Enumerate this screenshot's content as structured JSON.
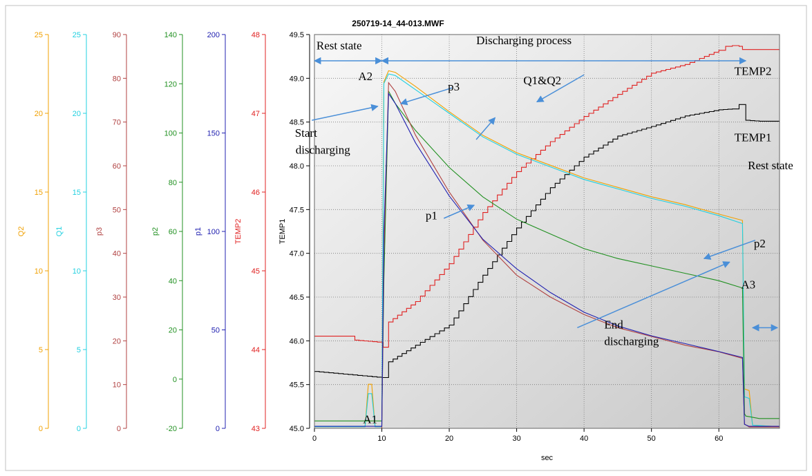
{
  "chart_data": {
    "type": "line",
    "title": "250719-14_44-013.MWF",
    "xlabel": "sec",
    "xlim": [
      0,
      69
    ],
    "x_ticks": [
      0,
      10,
      20,
      30,
      40,
      50,
      60
    ],
    "grid": true,
    "axes": [
      {
        "name": "Q2",
        "color": "#f0a000",
        "min": 0,
        "max": 25,
        "ticks": [
          0,
          5,
          10,
          15,
          20,
          25
        ]
      },
      {
        "name": "Q1",
        "color": "#20d0e0",
        "min": 0,
        "max": 25,
        "ticks": [
          0,
          5,
          10,
          15,
          20,
          25
        ]
      },
      {
        "name": "p3",
        "color": "#b04040",
        "min": 0,
        "max": 90,
        "ticks": [
          0,
          10,
          20,
          30,
          40,
          50,
          60,
          70,
          80,
          90
        ]
      },
      {
        "name": "p2",
        "color": "#209020",
        "min": -20,
        "max": 140,
        "ticks": [
          -20,
          0,
          20,
          40,
          60,
          80,
          100,
          120,
          140
        ]
      },
      {
        "name": "p1",
        "color": "#2020b0",
        "min": 0,
        "max": 200,
        "ticks": [
          0,
          50,
          100,
          150,
          200
        ]
      },
      {
        "name": "TEMP2",
        "color": "#e02020",
        "min": 43,
        "max": 48,
        "ticks": [
          43,
          44,
          45,
          46,
          47,
          48
        ]
      },
      {
        "name": "TEMP1",
        "color": "#000000",
        "min": 45,
        "max": 49.5,
        "ticks": [
          "45.0",
          "45.5",
          "46.0",
          "46.5",
          "47.0",
          "47.5",
          "48.0",
          "48.5",
          "49.0",
          "49.5"
        ]
      }
    ],
    "series": [
      {
        "name": "TEMP2",
        "color": "#e02020",
        "axis": "TEMP2",
        "step": true,
        "x": [
          0,
          5,
          6,
          10,
          10.2,
          11,
          15,
          20,
          25,
          30,
          35,
          40,
          45,
          50,
          55,
          60,
          61,
          62,
          63,
          63.5,
          64,
          66,
          69
        ],
        "y": [
          44.17,
          44.17,
          44.12,
          44.09,
          44.03,
          44.35,
          44.61,
          45.09,
          45.74,
          46.26,
          46.64,
          46.96,
          47.24,
          47.51,
          47.62,
          47.8,
          47.85,
          47.86,
          47.85,
          47.81,
          47.81,
          47.81,
          47.81
        ]
      },
      {
        "name": "TEMP1",
        "color": "#000000",
        "axis": "TEMP1",
        "step": true,
        "x": [
          0,
          10,
          11,
          15,
          20,
          25,
          30,
          35,
          40,
          45,
          50,
          55,
          60,
          62,
          63,
          64,
          66,
          69
        ],
        "y": [
          45.65,
          45.58,
          45.76,
          45.95,
          46.18,
          46.75,
          47.29,
          47.75,
          48.1,
          48.34,
          48.45,
          48.57,
          48.64,
          48.65,
          48.7,
          48.52,
          48.51,
          48.51
        ]
      },
      {
        "name": "Q2",
        "color": "#f0a000",
        "axis": "Q2",
        "x": [
          0,
          7.5,
          8,
          8.5,
          9,
          10,
          10.3,
          11,
          12,
          15,
          20,
          25,
          30,
          35,
          40,
          45,
          50,
          55,
          60,
          63.5,
          63.8,
          64.5,
          65,
          69
        ],
        "y": [
          0.1,
          0.1,
          2.8,
          2.8,
          0.1,
          0.1,
          22.0,
          22.7,
          22.6,
          21.7,
          20.1,
          18.6,
          17.5,
          16.7,
          15.9,
          15.3,
          14.7,
          14.2,
          13.6,
          13.2,
          2.5,
          2.4,
          0.2,
          0.1
        ]
      },
      {
        "name": "Q1",
        "color": "#20d0e0",
        "axis": "Q1",
        "x": [
          0,
          7.5,
          8,
          8.5,
          9,
          10,
          10.3,
          11,
          12,
          15,
          20,
          25,
          30,
          35,
          40,
          45,
          50,
          55,
          60,
          63.5,
          63.8,
          64.5,
          65,
          69
        ],
        "y": [
          0.1,
          0.1,
          2.2,
          2.2,
          0.1,
          0.1,
          21.9,
          22.5,
          22.4,
          21.5,
          20.0,
          18.5,
          17.4,
          16.6,
          15.8,
          15.2,
          14.6,
          14.1,
          13.5,
          13.0,
          2.0,
          1.9,
          0.2,
          0.1
        ]
      },
      {
        "name": "p2",
        "color": "#209020",
        "axis": "p2",
        "x": [
          0,
          9.8,
          10,
          10.3,
          11,
          12,
          15,
          20,
          25,
          30,
          35,
          40,
          45,
          50,
          55,
          60,
          63.5,
          63.8,
          64,
          66,
          69
        ],
        "y": [
          -17,
          -17,
          -17,
          40,
          117,
          112,
          101,
          86,
          74,
          65,
          59,
          53,
          49,
          46,
          43,
          40,
          37,
          -14,
          -15,
          -16,
          -16
        ]
      },
      {
        "name": "p3",
        "color": "#b04040",
        "axis": "p3",
        "x": [
          0,
          9.8,
          10,
          10.3,
          11,
          12,
          15,
          20,
          25,
          30,
          35,
          40,
          45,
          50,
          55,
          60,
          63.5,
          63.8,
          64.5,
          66,
          69
        ],
        "y": [
          0,
          0,
          0,
          40,
          79,
          77,
          67,
          54,
          43,
          35,
          30,
          26,
          23,
          21,
          19,
          17.5,
          16,
          1,
          0.3,
          0.3,
          0.3
        ]
      },
      {
        "name": "p1",
        "color": "#2020b0",
        "axis": "p1",
        "x": [
          0,
          9.8,
          10,
          10.3,
          11,
          12,
          15,
          20,
          25,
          30,
          35,
          40,
          45,
          50,
          55,
          60,
          63.5,
          63.8,
          64.5,
          66,
          69
        ],
        "y": [
          1,
          1,
          1,
          100,
          170,
          165,
          145,
          118,
          96,
          81,
          69,
          59,
          52,
          47,
          43,
          39,
          36,
          2,
          1,
          1,
          1
        ]
      }
    ],
    "annotations": [
      {
        "text": "Rest state",
        "x": 0.3,
        "y": 49.33
      },
      {
        "text": "Discharging process",
        "x": 24,
        "y": 49.39
      },
      {
        "text": "A2",
        "x": 6.5,
        "y": 48.98
      },
      {
        "text": "TEMP2",
        "x": 62.3,
        "y": 49.04
      },
      {
        "text": "p3",
        "x": 19.8,
        "y": 48.86
      },
      {
        "text": "Q1&Q2",
        "x": 31,
        "y": 48.93
      },
      {
        "text": "Start",
        "x": -2.9,
        "y": 48.33
      },
      {
        "text": "discharging",
        "x": -2.8,
        "y": 48.14
      },
      {
        "text": "TEMP1",
        "x": 62.3,
        "y": 48.28
      },
      {
        "text": "Rest state",
        "x": 64.3,
        "y": 47.96
      },
      {
        "text": "p1",
        "x": 16.5,
        "y": 47.39
      },
      {
        "text": "p2",
        "x": 65.2,
        "y": 47.07
      },
      {
        "text": "A3",
        "x": 63.3,
        "y": 46.6
      },
      {
        "text": "End",
        "x": 43,
        "y": 46.14
      },
      {
        "text": "discharging",
        "x": 43,
        "y": 45.95
      },
      {
        "text": "A1",
        "x": 7.2,
        "y": 45.06
      }
    ]
  }
}
